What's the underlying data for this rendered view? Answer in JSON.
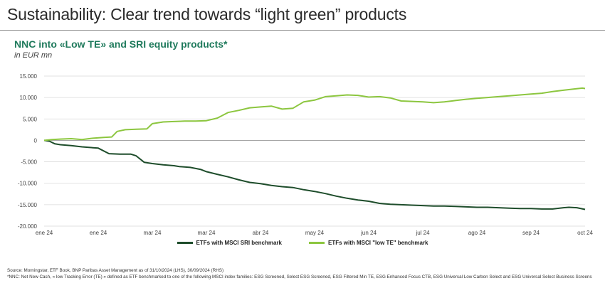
{
  "page": {
    "title": "Sustainability: Clear trend towards “light green” products"
  },
  "chart_data": {
    "type": "line",
    "title": "NNC into «Low TE» and SRI equity products*",
    "subtitle": "in EUR mn",
    "xlabel": "",
    "ylabel": "",
    "categories": [
      "ene 24",
      "ene 24",
      "mar 24",
      "mar 24",
      "abr 24",
      "may 24",
      "jun 24",
      "jul 24",
      "ago 24",
      "sep 24",
      "oct 24"
    ],
    "y_ticks": [
      15000,
      10000,
      5000,
      0,
      -5000,
      -10000,
      -15000,
      -20000
    ],
    "y_tick_labels": [
      "15.000",
      "10.000",
      "5.000",
      "0",
      "-5.000",
      "-10.000",
      "-15.000",
      "-20.000"
    ],
    "ylim": [
      -20000,
      15000
    ],
    "grid": "horizontal",
    "legend": "bottom-center",
    "series": [
      {
        "name": "ETFs with MSCI SRI benchmark",
        "color": "#1e4d2b",
        "x": [
          0,
          0.1,
          0.2,
          0.3,
          0.5,
          0.7,
          0.9,
          1.0,
          1.2,
          1.4,
          1.6,
          1.7,
          1.85,
          2.0,
          2.2,
          2.4,
          2.5,
          2.7,
          2.9,
          3.0,
          3.2,
          3.4,
          3.6,
          3.8,
          4.0,
          4.2,
          4.4,
          4.6,
          4.8,
          5.0,
          5.2,
          5.4,
          5.6,
          5.8,
          6.0,
          6.2,
          6.4,
          6.6,
          6.8,
          7.0,
          7.2,
          7.4,
          7.6,
          7.8,
          8.0,
          8.2,
          8.4,
          8.6,
          8.8,
          9.0,
          9.2,
          9.4,
          9.6,
          9.7,
          9.85,
          10.0
        ],
        "values": [
          0,
          -200,
          -800,
          -1000,
          -1200,
          -1500,
          -1700,
          -1800,
          -3100,
          -3200,
          -3200,
          -3600,
          -5100,
          -5400,
          -5700,
          -5900,
          -6100,
          -6300,
          -6800,
          -7300,
          -7900,
          -8500,
          -9200,
          -9800,
          -10100,
          -10500,
          -10800,
          -11000,
          -11500,
          -11900,
          -12400,
          -13000,
          -13500,
          -13900,
          -14200,
          -14700,
          -14900,
          -15000,
          -15100,
          -15200,
          -15300,
          -15300,
          -15400,
          -15500,
          -15600,
          -15600,
          -15700,
          -15800,
          -15900,
          -15900,
          -16000,
          -16000,
          -15700,
          -15600,
          -15700,
          -16100
        ]
      },
      {
        "name": "ETFs with MSCI \"low TE\" benchmark",
        "color": "#8cc63f",
        "x": [
          0,
          0.15,
          0.3,
          0.5,
          0.7,
          0.9,
          1.1,
          1.25,
          1.35,
          1.5,
          1.7,
          1.9,
          2.0,
          2.2,
          2.4,
          2.6,
          2.8,
          3.0,
          3.2,
          3.4,
          3.6,
          3.8,
          4.0,
          4.2,
          4.4,
          4.6,
          4.8,
          5.0,
          5.2,
          5.4,
          5.6,
          5.8,
          6.0,
          6.2,
          6.4,
          6.6,
          6.8,
          7.0,
          7.2,
          7.4,
          7.6,
          7.8,
          8.0,
          8.2,
          8.4,
          8.6,
          8.8,
          9.0,
          9.2,
          9.4,
          9.6,
          9.8,
          9.95,
          10.0
        ],
        "values": [
          0,
          200,
          300,
          400,
          200,
          500,
          700,
          800,
          2100,
          2500,
          2600,
          2700,
          3900,
          4300,
          4400,
          4500,
          4500,
          4600,
          5200,
          6500,
          7000,
          7600,
          7800,
          8000,
          7300,
          7500,
          9000,
          9400,
          10200,
          10400,
          10600,
          10500,
          10100,
          10200,
          9900,
          9200,
          9100,
          9000,
          8800,
          9000,
          9300,
          9600,
          9800,
          10000,
          10200,
          10400,
          10600,
          10800,
          11000,
          11400,
          11700,
          12000,
          12200,
          12100
        ]
      }
    ]
  },
  "source": {
    "line1": "Source: Morningstar, ETF Book, BNP Paribas Asset Management as of 31/10/2024 (LHS), 30/09/2024 (RHS)",
    "line2": "*NNC: Net New Cash, « low Tracking Error (TE) » defined as ETF benchmarked to one of the following MSCI index families: ESG Screened, Select ESG Screened, ESG Filtered Min TE, ESG Enhanced Focus CTB, ESG Universal Low Carbon Select and ESG Universal Select Business Screens"
  }
}
